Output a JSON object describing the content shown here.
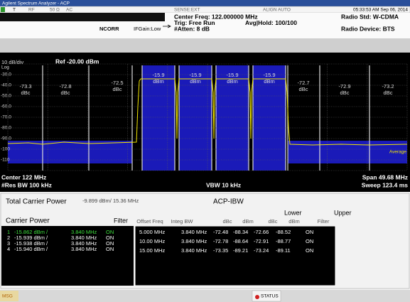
{
  "title_bar": "Agilent Spectrum Analyzer - ACP",
  "status_bar": {
    "trigger": "T",
    "input": "RF",
    "impedance": "50 Ω",
    "coupling": "AC",
    "sense": "SENSE:EXT",
    "align": "ALIGN AUTO",
    "datetime": "05:33:53 AM Sep 06, 2014"
  },
  "settings": {
    "center_freq": "Center Freq: 122.000000 MHz",
    "trig": "Trig: Free Run",
    "atten": "#Atten: 8 dB",
    "avg_hold": "Avg|Hold: 100/100",
    "ncorr": "NCORR",
    "ifgain": "IFGain:Low",
    "radio_std": "Radio Std: W-CDMA",
    "radio_device": "Radio Device: BTS"
  },
  "graph": {
    "scale": "10 dB/div",
    "log": "Log",
    "ref": "Ref -20.00 dBm",
    "y_labels": [
      "-30.0",
      "-40.0",
      "-50.0",
      "-60.0",
      "-70.0",
      "-80.0",
      "-90.0",
      "-100",
      "-110"
    ],
    "channels": [
      {
        "value": "-73.3",
        "unit": "dBc"
      },
      {
        "value": "-72.8",
        "unit": "dBc"
      },
      {
        "value": "-72.5",
        "unit": "dBc"
      },
      {
        "value": "-15.9",
        "unit": "dBm"
      },
      {
        "value": "-15.9",
        "unit": "dBm"
      },
      {
        "value": "-15.9",
        "unit": "dBm"
      },
      {
        "value": "-15.9",
        "unit": "dBm"
      },
      {
        "value": "-72.7",
        "unit": "dBc"
      },
      {
        "value": "-72.9",
        "unit": "dBc"
      },
      {
        "value": "-73.2",
        "unit": "dBc"
      }
    ],
    "trace_label": "Average",
    "center": "Center 122 MHz",
    "res_bw": "#Res BW 100 kHz",
    "vbw": "VBW 10 kHz",
    "span": "Span 49.68 MHz",
    "sweep": "Sweep 123.4 ms"
  },
  "results": {
    "total_label": "Total Carrier Power",
    "total_value": "-9.899 dBm/ 15.36 MHz",
    "mode": "ACP-IBW",
    "carrier_title": "Carrier Power",
    "carrier_filter": "Filter",
    "carriers": [
      [
        "1",
        "-15.862 dBm /",
        "3.840 MHz",
        "ON"
      ],
      [
        "2",
        "-15.939 dBm /",
        "3.840 MHz",
        "ON"
      ],
      [
        "3",
        "-15.938 dBm /",
        "3.840 MHz",
        "ON"
      ],
      [
        "4",
        "-15.940 dBm /",
        "3.840 MHz",
        "ON"
      ]
    ],
    "lower": "Lower",
    "upper": "Upper",
    "offset_columns": [
      "Offset Freq",
      "Integ BW",
      "dBc",
      "dBm",
      "dBc",
      "dBm",
      "Filter"
    ],
    "offsets": [
      [
        "5.000 MHz",
        "3.840 MHz",
        "-72.48",
        "-88.34",
        "-72.66",
        "-88.52",
        "ON"
      ],
      [
        "10.00 MHz",
        "3.840 MHz",
        "-72.78",
        "-88.64",
        "-72.91",
        "-88.77",
        "ON"
      ],
      [
        "15.00 MHz",
        "3.840 MHz",
        "-73.35",
        "-89.21",
        "-73.24",
        "-89.11",
        "ON"
      ]
    ]
  },
  "footer": {
    "msg": "MSG",
    "status": "STATUS"
  }
}
